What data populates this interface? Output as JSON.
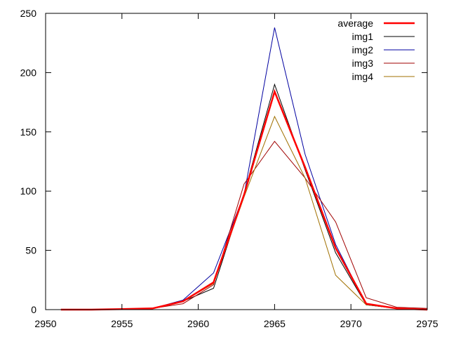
{
  "chart_data": {
    "type": "line",
    "title": "",
    "xlabel": "",
    "ylabel": "",
    "xlim": [
      2950,
      2975
    ],
    "ylim": [
      0,
      250
    ],
    "xticks": [
      2950,
      2955,
      2960,
      2965,
      2970,
      2975
    ],
    "yticks": [
      0,
      50,
      100,
      150,
      200,
      250
    ],
    "grid": false,
    "legend_position": "top-right",
    "x": [
      2951,
      2953,
      2955,
      2957,
      2959,
      2961,
      2963,
      2965,
      2967,
      2969,
      2971,
      2973,
      2975
    ],
    "series": [
      {
        "name": "average",
        "color": "#ff0000",
        "width": 2.5,
        "values": [
          0,
          0,
          0.5,
          1,
          7,
          23,
          97,
          184,
          120,
          52,
          5,
          1,
          0
        ]
      },
      {
        "name": "img1",
        "color": "#000000",
        "width": 1,
        "values": [
          0,
          0,
          0.5,
          1,
          7,
          18,
          98,
          190,
          118,
          48,
          4,
          1,
          0
        ]
      },
      {
        "name": "img2",
        "color": "#0000a0",
        "width": 1,
        "values": [
          0,
          0,
          0.5,
          1,
          8,
          31,
          97,
          238,
          131,
          55,
          4,
          1,
          0
        ]
      },
      {
        "name": "img3",
        "color": "#a00000",
        "width": 1,
        "values": [
          0,
          0,
          0.5,
          1,
          5,
          21,
          106,
          142,
          111,
          74,
          10,
          2,
          1
        ]
      },
      {
        "name": "img4",
        "color": "#a07000",
        "width": 1,
        "values": [
          0,
          0,
          0.5,
          1,
          7,
          22,
          95,
          163,
          111,
          29,
          4,
          1,
          0
        ]
      }
    ]
  }
}
